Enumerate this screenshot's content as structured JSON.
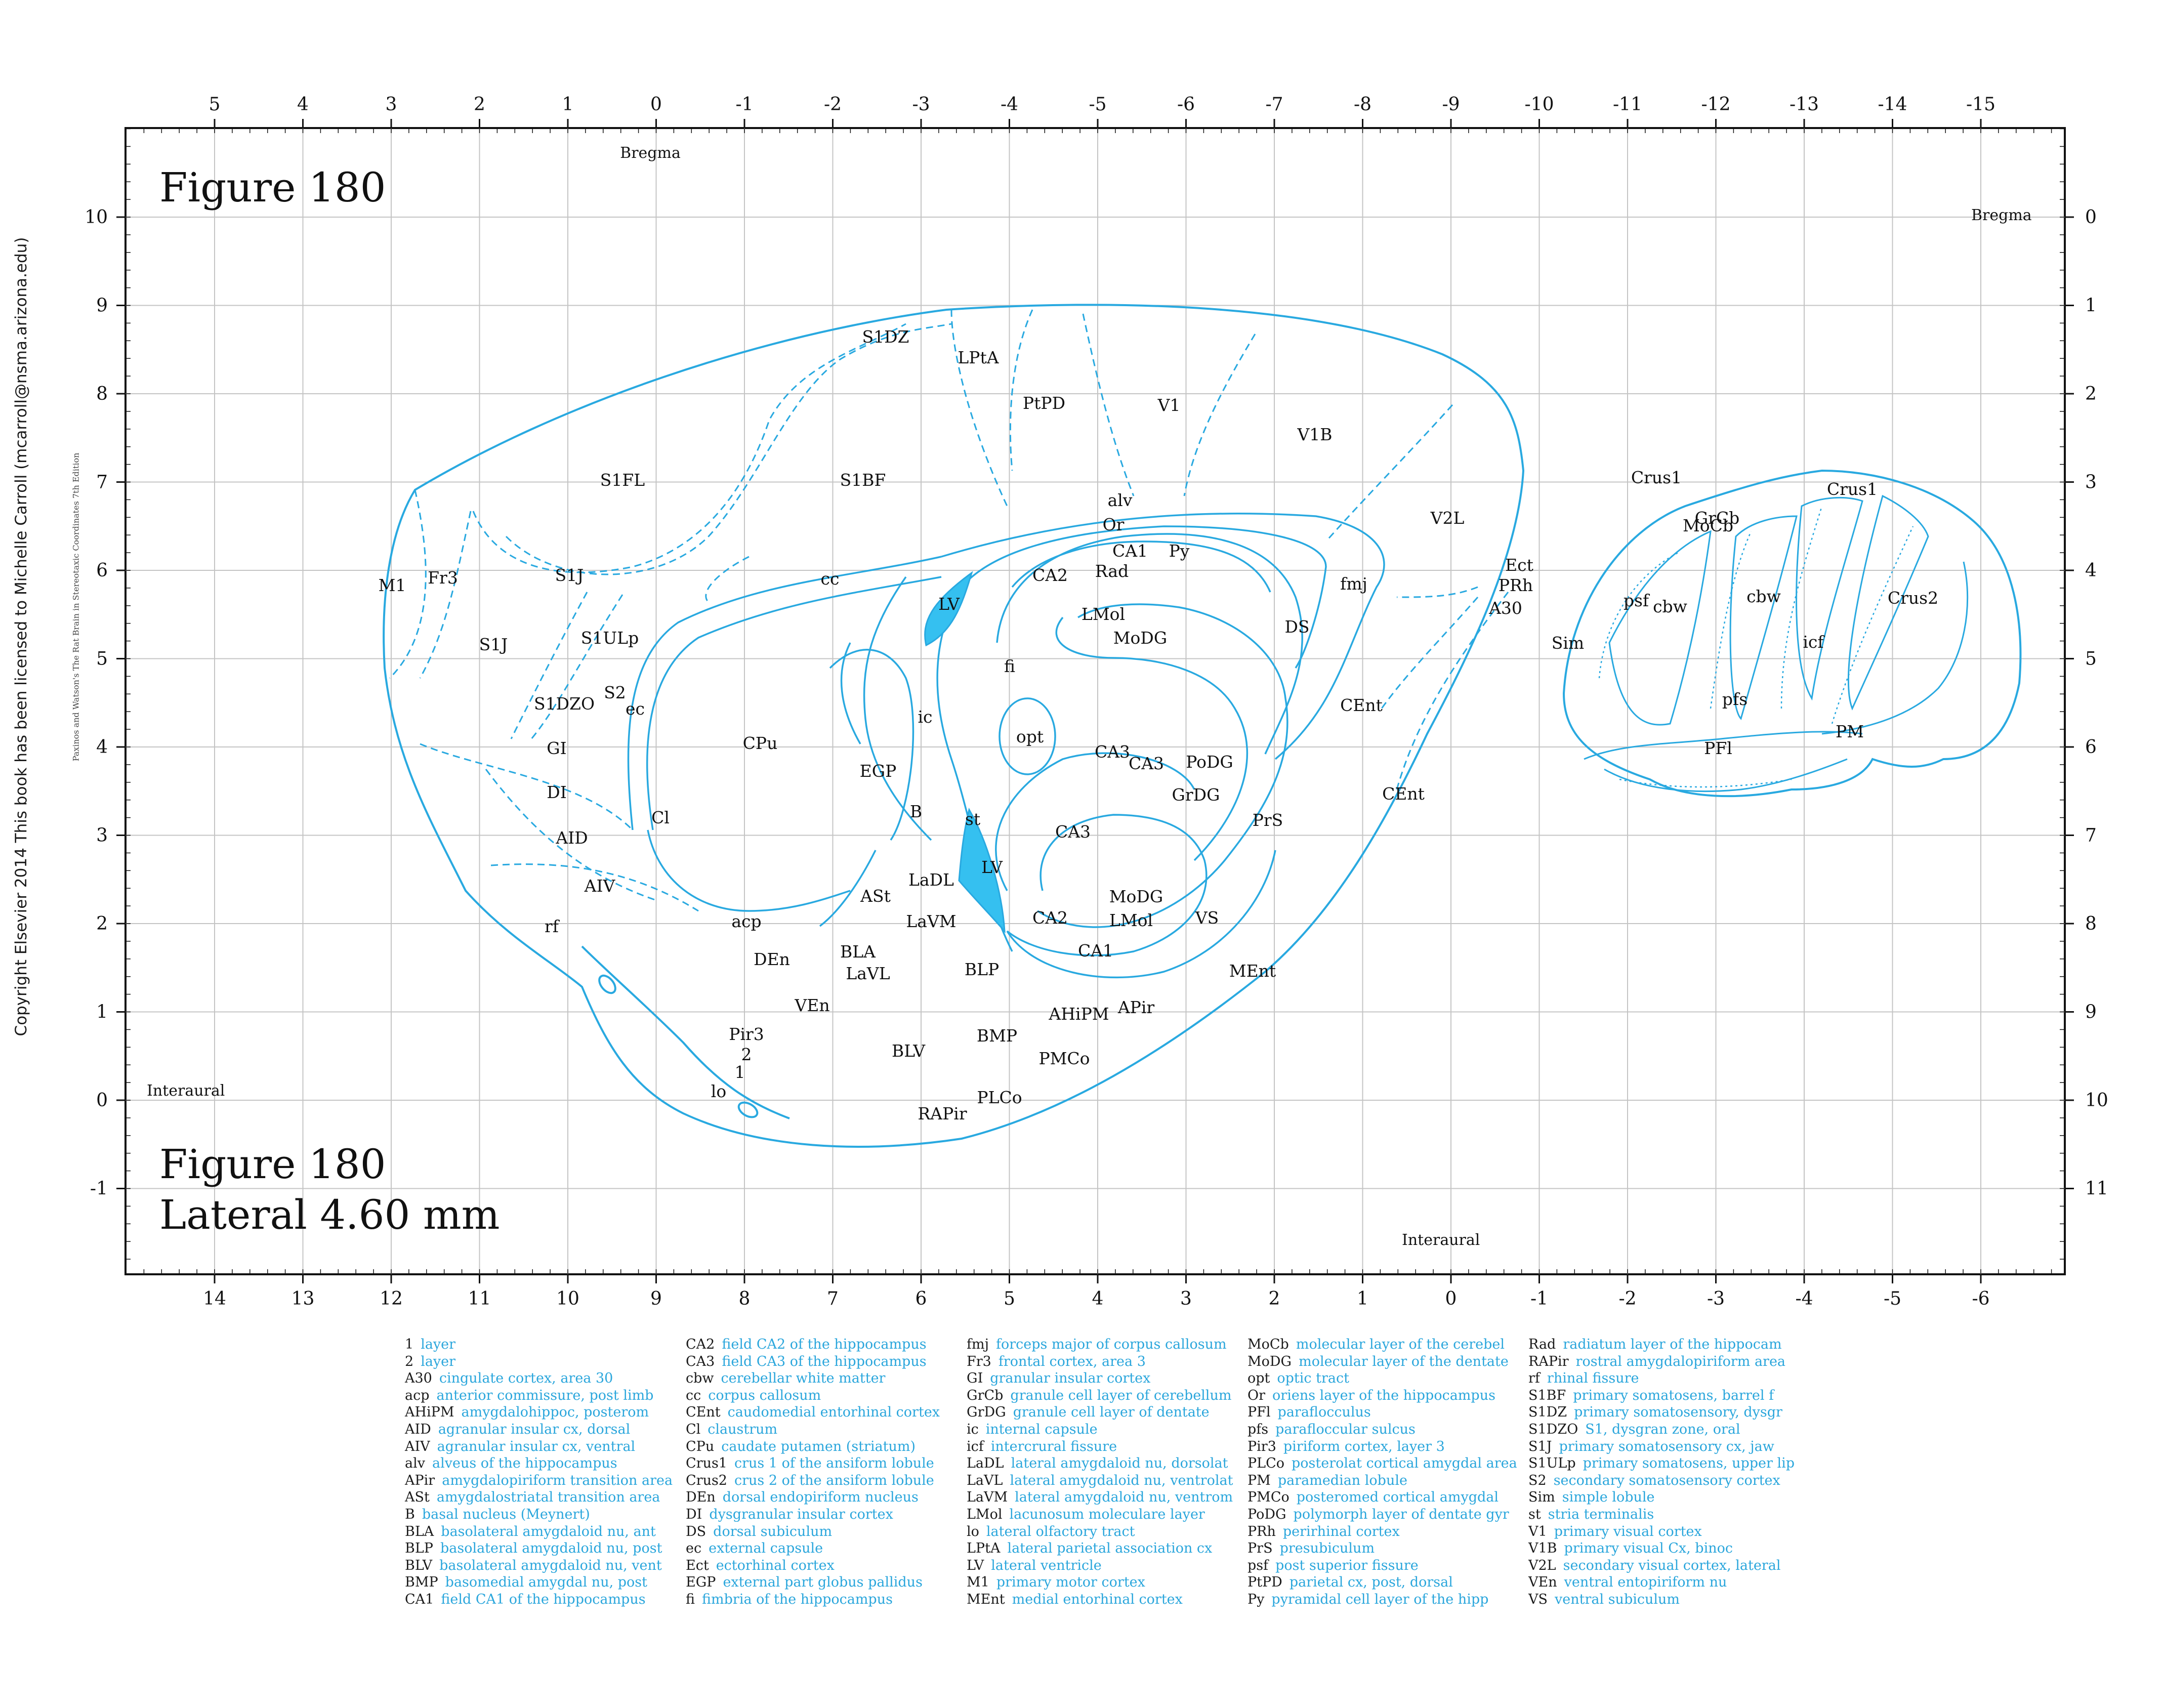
{
  "copyright": "Copyright Elsevier 2014 This book has been licensed to Michelle Carroll (mcarroll@nsma.arizona.edu)",
  "edition_note": "Paxinos and Watson's The Rat Brain in Stereotaxic Coordinates   7th Edition",
  "figure_title_top": "Figure 180",
  "figure_title_bottom": "Figure 180",
  "lateral": "Lateral 4.60 mm",
  "bregma_top": "Bregma",
  "bregma_right": "Bregma",
  "interaural_left": "Interaural",
  "interaural_bottom": "Interaural",
  "top_axis": [
    "5",
    "4",
    "3",
    "2",
    "1",
    "0",
    "-1",
    "-2",
    "-3",
    "-4",
    "-5",
    "-6",
    "-7",
    "-8",
    "-9",
    "-10",
    "-11",
    "-12",
    "-13",
    "-14",
    "-15"
  ],
  "bottom_axis": [
    "14",
    "13",
    "12",
    "11",
    "10",
    "9",
    "8",
    "7",
    "6",
    "5",
    "4",
    "3",
    "2",
    "1",
    "0",
    "-1",
    "-2",
    "-3",
    "-4",
    "-5",
    "-6"
  ],
  "left_axis": [
    "10",
    "9",
    "8",
    "7",
    "6",
    "5",
    "4",
    "3",
    "2",
    "1",
    "0",
    "-1"
  ],
  "right_axis": [
    "0",
    "1",
    "2",
    "3",
    "4",
    "5",
    "6",
    "7",
    "8",
    "9",
    "10",
    "11"
  ],
  "regions": [
    "S1DZ",
    "LPtA",
    "PtPD",
    "V1",
    "V1B",
    "S1FL",
    "S1BF",
    "V2L",
    "M1",
    "Fr3",
    "S1J",
    "S1J",
    "S1ULp",
    "S2",
    "S1DZO",
    "ec",
    "GI",
    "DI",
    "AID",
    "AIV",
    "Cl",
    "rf",
    "cc",
    "alv",
    "Or",
    "CA1",
    "Py",
    "Rad",
    "CA2",
    "LV",
    "LMol",
    "MoDG",
    "DS",
    "fmj",
    "Ect",
    "PRh",
    "A30",
    "CPu",
    "ic",
    "fi",
    "opt",
    "EGP",
    "B",
    "st",
    "CA3",
    "CA3",
    "PoDG",
    "GrDG",
    "CEnt",
    "CEnt",
    "PrS",
    "CA3",
    "LV",
    "LaDL",
    "ASt",
    "acp",
    "LaVM",
    "BLA",
    "LaVL",
    "DEn",
    "CA2",
    "MoDG",
    "LMol",
    "VS",
    "CA1",
    "BLP",
    "VEn",
    "AHiPM",
    "APir",
    "MEnt",
    "Pir3",
    "2",
    "1",
    "BLV",
    "BMP",
    "PMCo",
    "lo",
    "RAPir",
    "PLCo",
    "Crus1",
    "Crus1",
    "MoCb",
    "GrCb",
    "psf",
    "cbw",
    "cbw",
    "Sim",
    "icf",
    "Crus2",
    "pfs",
    "PM",
    "PFl"
  ],
  "legend_columns": [
    [
      [
        "1",
        "layer"
      ],
      [
        "2",
        "layer"
      ],
      [
        "A30",
        "cingulate cortex, area 30"
      ],
      [
        "acp",
        "anterior commissure, post limb"
      ],
      [
        "AHiPM",
        "amygdalohippoc, posterom"
      ],
      [
        "AID",
        "agranular insular cx, dorsal"
      ],
      [
        "AIV",
        "agranular insular cx, ventral"
      ],
      [
        "alv",
        "alveus of the hippocampus"
      ],
      [
        "APir",
        "amygdalopiriform transition area"
      ],
      [
        "ASt",
        "amygdalostriatal transition area"
      ],
      [
        "B",
        "basal nucleus (Meynert)"
      ],
      [
        "BLA",
        "basolateral amygdaloid nu, ant"
      ],
      [
        "BLP",
        "basolateral amygdaloid nu, post"
      ],
      [
        "BLV",
        "basolateral amygdaloid nu, vent"
      ],
      [
        "BMP",
        "basomedial amygdal nu, post"
      ],
      [
        "CA1",
        "field CA1 of the hippocampus"
      ]
    ],
    [
      [
        "CA2",
        "field CA2 of the hippocampus"
      ],
      [
        "CA3",
        "field CA3 of the hippocampus"
      ],
      [
        "cbw",
        "cerebellar white matter"
      ],
      [
        "cc",
        "corpus callosum"
      ],
      [
        "CEnt",
        "caudomedial entorhinal cortex"
      ],
      [
        "Cl",
        "claustrum"
      ],
      [
        "CPu",
        "caudate putamen (striatum)"
      ],
      [
        "Crus1",
        "crus 1 of the ansiform lobule"
      ],
      [
        "Crus2",
        "crus 2 of the ansiform lobule"
      ],
      [
        "DEn",
        "dorsal endopiriform nucleus"
      ],
      [
        "DI",
        "dysgranular insular cortex"
      ],
      [
        "DS",
        "dorsal subiculum"
      ],
      [
        "ec",
        "external capsule"
      ],
      [
        "Ect",
        "ectorhinal cortex"
      ],
      [
        "EGP",
        "external part globus pallidus"
      ],
      [
        "fi",
        "fimbria of the hippocampus"
      ]
    ],
    [
      [
        "fmj",
        "forceps major of corpus callosum"
      ],
      [
        "Fr3",
        "frontal cortex, area 3"
      ],
      [
        "GI",
        "granular insular cortex"
      ],
      [
        "GrCb",
        "granule cell layer of cerebellum"
      ],
      [
        "GrDG",
        "granule cell layer of dentate"
      ],
      [
        "ic",
        "internal capsule"
      ],
      [
        "icf",
        "intercrural fissure"
      ],
      [
        "LaDL",
        "lateral amygdaloid nu, dorsolat"
      ],
      [
        "LaVL",
        "lateral amygdaloid nu, ventrolat"
      ],
      [
        "LaVM",
        "lateral amygdaloid nu, ventrom"
      ],
      [
        "LMol",
        "lacunosum moleculare layer"
      ],
      [
        "lo",
        "lateral olfactory tract"
      ],
      [
        "LPtA",
        "lateral parietal association cx"
      ],
      [
        "LV",
        "lateral ventricle"
      ],
      [
        "M1",
        "primary motor cortex"
      ],
      [
        "MEnt",
        "medial entorhinal cortex"
      ]
    ],
    [
      [
        "MoCb",
        "molecular layer of the cerebel"
      ],
      [
        "MoDG",
        "molecular layer of the dentate"
      ],
      [
        "opt",
        "optic tract"
      ],
      [
        "Or",
        "oriens layer of the hippocampus"
      ],
      [
        "PFl",
        "paraflocculus"
      ],
      [
        "pfs",
        "parafloccular sulcus"
      ],
      [
        "Pir3",
        "piriform cortex, layer 3"
      ],
      [
        "PLCo",
        "posterolat cortical amygdal area"
      ],
      [
        "PM",
        "paramedian lobule"
      ],
      [
        "PMCo",
        "posteromed cortical amygdal"
      ],
      [
        "PoDG",
        "polymorph layer of dentate gyr"
      ],
      [
        "PRh",
        "perirhinal cortex"
      ],
      [
        "PrS",
        "presubiculum"
      ],
      [
        "psf",
        "post superior fissure"
      ],
      [
        "PtPD",
        "parietal cx, post, dorsal"
      ],
      [
        "Py",
        "pyramidal cell layer of the hipp"
      ]
    ],
    [
      [
        "Rad",
        "radiatum layer of the hippocam"
      ],
      [
        "RAPir",
        "rostral amygdalopiriform area"
      ],
      [
        "rf",
        "rhinal fissure"
      ],
      [
        "S1BF",
        "primary somatosens, barrel f"
      ],
      [
        "S1DZ",
        "primary somatosensory, dysgr"
      ],
      [
        "S1DZO",
        "S1, dysgran zone, oral"
      ],
      [
        "S1J",
        "primary somatosensory cx, jaw"
      ],
      [
        "S1ULp",
        "primary somatosens, upper lip"
      ],
      [
        "S2",
        "secondary somatosensory cortex"
      ],
      [
        "Sim",
        "simple lobule"
      ],
      [
        "st",
        "stria terminalis"
      ],
      [
        "V1",
        "primary visual cortex"
      ],
      [
        "V1B",
        "primary visual Cx, binoc"
      ],
      [
        "V2L",
        "secondary visual cortex, lateral"
      ],
      [
        "VEn",
        "ventral entopiriform nu"
      ],
      [
        "VS",
        "ventral subiculum"
      ]
    ]
  ],
  "colors": {
    "outline": "#29a9e0",
    "ventricle_fill": "#35c0f0",
    "grid": "#bdbdbd",
    "legend_desc": "#2aa6dc"
  }
}
